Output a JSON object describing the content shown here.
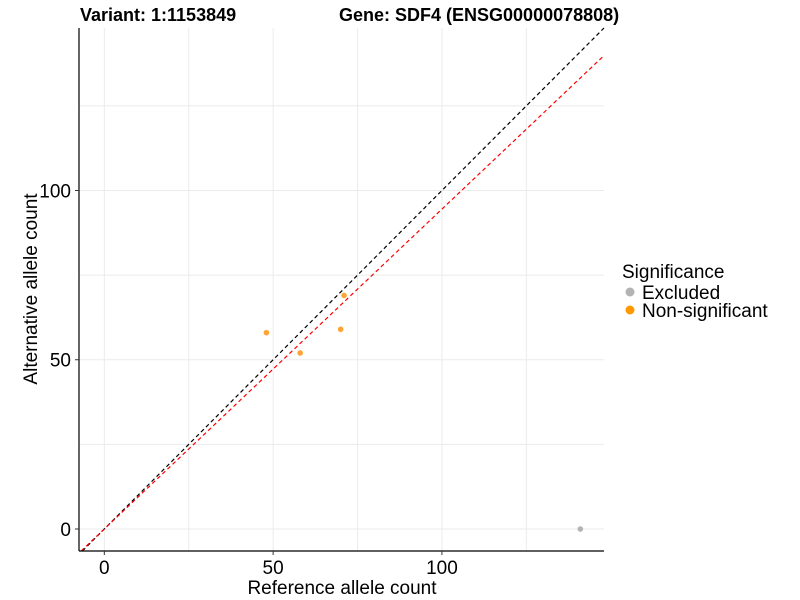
{
  "chart_data": {
    "type": "scatter",
    "title_left": "Variant: 1:1153849",
    "title_right": "Gene: SDF4 (ENSG00000078808)",
    "xlabel": "Reference allele count",
    "ylabel": "Alternative allele count",
    "xlim": [
      -7.5,
      148
    ],
    "ylim": [
      -6.5,
      148
    ],
    "x_ticks": [
      0,
      50,
      100
    ],
    "y_ticks": [
      0,
      50,
      100
    ],
    "grid": true,
    "legend": {
      "title": "Significance",
      "position": "right",
      "entries": [
        {
          "label": "Excluded",
          "color": "#b3b3b3"
        },
        {
          "label": "Non-significant",
          "color": "#ff9900"
        }
      ]
    },
    "series": [
      {
        "name": "Excluded",
        "color": "#b3b3b3",
        "points": [
          [
            141,
            0
          ]
        ]
      },
      {
        "name": "Non-significant",
        "color": "#ffa533",
        "points": [
          [
            48,
            58
          ],
          [
            58,
            52
          ],
          [
            70,
            59
          ],
          [
            71,
            69
          ]
        ]
      }
    ],
    "reference_lines": [
      {
        "style": "dashed",
        "color": "#000000",
        "slope": 1,
        "intercept": 0
      },
      {
        "style": "dashed",
        "color": "#ff0000",
        "slope": 0.945,
        "intercept": 0
      }
    ]
  }
}
